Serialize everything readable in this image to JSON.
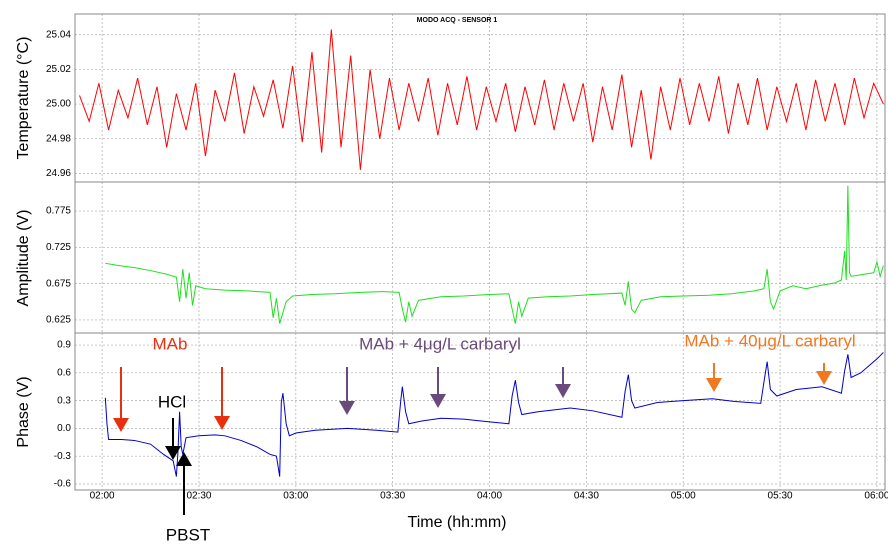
{
  "chart_data": [
    {
      "type": "line",
      "title": "MODO ACQ - SENSOR 1",
      "ylabel": "Temperature (°C)",
      "color": "#ff0000",
      "grid": true,
      "xlim": [
        111.6,
        362.5
      ],
      "ylim": [
        24.955,
        25.052
      ],
      "yticks": [
        24.96,
        24.98,
        {
          "value": 25,
          "label": "25.00"
        },
        25.02,
        25.04
      ],
      "x": [
        113,
        116,
        119,
        122,
        125,
        128,
        131,
        134,
        137,
        140,
        143,
        146,
        149,
        152,
        155,
        158,
        161,
        164,
        167,
        170,
        173,
        176,
        179,
        182,
        185,
        188,
        191,
        194,
        197,
        200,
        203,
        206,
        209,
        212,
        215,
        218,
        221,
        224,
        227,
        230,
        233,
        236,
        239,
        242,
        245,
        248,
        251,
        254,
        257,
        260,
        263,
        266,
        269,
        272,
        275,
        278,
        281,
        284,
        287,
        290,
        293,
        296,
        299,
        302,
        305,
        308,
        311,
        314,
        317,
        320,
        323,
        326,
        329,
        332,
        335,
        338,
        341,
        344,
        347,
        350,
        353,
        356,
        359,
        362
      ],
      "values": [
        25.005,
        24.99,
        25.012,
        24.985,
        25.008,
        24.992,
        25.015,
        24.988,
        25.01,
        24.975,
        25.006,
        24.985,
        25.012,
        24.97,
        25.008,
        24.99,
        25.018,
        24.983,
        25.01,
        24.993,
        25.014,
        24.986,
        25.022,
        24.978,
        25.03,
        24.972,
        25.043,
        24.975,
        25.028,
        24.962,
        25.02,
        24.98,
        25.015,
        24.985,
        25.012,
        24.99,
        25.015,
        24.982,
        25.012,
        24.988,
        25.016,
        24.985,
        25.01,
        24.99,
        25.012,
        24.984,
        25.01,
        24.988,
        25.014,
        24.985,
        25.012,
        24.99,
        25.012,
        24.978,
        25.01,
        24.985,
        25.017,
        24.975,
        25.008,
        24.968,
        25.01,
        24.985,
        25.015,
        24.988,
        25.012,
        24.99,
        25.016,
        24.983,
        25.012,
        24.988,
        25.015,
        24.985,
        25.01,
        24.99,
        25.012,
        24.985,
        25.014,
        24.99,
        25.012,
        24.988,
        25.015,
        24.992,
        25.012,
        25.0
      ]
    },
    {
      "type": "line",
      "ylabel": "Amplitude (V)",
      "color": "#1ee01e",
      "grid": true,
      "xlim": [
        111.6,
        362.5
      ],
      "ylim": [
        0.607,
        0.815
      ],
      "yticks": [
        0.625,
        0.675,
        0.725,
        0.775
      ],
      "x": [
        121,
        125,
        130,
        135,
        140,
        143,
        144,
        145,
        146,
        147,
        148,
        149,
        152,
        158,
        165,
        172,
        173,
        174,
        175,
        177,
        179,
        185,
        192,
        200,
        207,
        212,
        213,
        214,
        215,
        216,
        218,
        225,
        232,
        240,
        246,
        247,
        248,
        249,
        250,
        252,
        258,
        265,
        272,
        281,
        282,
        283,
        284,
        285,
        287,
        293,
        300,
        308,
        315,
        322,
        325,
        326,
        327,
        328,
        330,
        334,
        338,
        343,
        347,
        349,
        350,
        350.5,
        351,
        351.5,
        352,
        356,
        359,
        360,
        361,
        362
      ],
      "values": [
        0.703,
        0.7,
        0.697,
        0.693,
        0.688,
        0.684,
        0.65,
        0.695,
        0.655,
        0.69,
        0.645,
        0.672,
        0.668,
        0.666,
        0.665,
        0.663,
        0.628,
        0.655,
        0.62,
        0.65,
        0.658,
        0.66,
        0.661,
        0.663,
        0.664,
        0.663,
        0.64,
        0.622,
        0.65,
        0.63,
        0.652,
        0.657,
        0.658,
        0.66,
        0.661,
        0.64,
        0.62,
        0.65,
        0.63,
        0.655,
        0.657,
        0.658,
        0.66,
        0.662,
        0.645,
        0.678,
        0.64,
        0.635,
        0.652,
        0.657,
        0.658,
        0.659,
        0.661,
        0.665,
        0.668,
        0.695,
        0.65,
        0.64,
        0.665,
        0.672,
        0.668,
        0.673,
        0.676,
        0.68,
        0.72,
        0.68,
        0.81,
        0.69,
        0.685,
        0.688,
        0.69,
        0.705,
        0.685,
        0.7
      ]
    },
    {
      "type": "line",
      "ylabel": "Phase (V)",
      "xlabel": "Time (hh:mm)",
      "color": "#0000cc",
      "grid": true,
      "xlim": [
        111.6,
        362.5
      ],
      "ylim": [
        -0.665,
        1.03
      ],
      "yticks": [
        -0.6,
        -0.3,
        {
          "value": 0,
          "label": "0.0"
        },
        0.3,
        0.6,
        0.9
      ],
      "xticks": [
        {
          "value": 120,
          "label": "02:00"
        },
        {
          "value": 150,
          "label": "02:30"
        },
        {
          "value": 180,
          "label": "03:00"
        },
        {
          "value": 210,
          "label": "03:30"
        },
        {
          "value": 240,
          "label": "04:00"
        },
        {
          "value": 270,
          "label": "04:30"
        },
        {
          "value": 300,
          "label": "05:00"
        },
        {
          "value": 330,
          "label": "05:30"
        },
        {
          "value": 360,
          "label": "06:00"
        }
      ],
      "x": [
        121,
        121.5,
        122,
        126,
        130,
        135,
        139,
        142,
        143,
        143.5,
        144,
        144.5,
        145,
        146,
        150,
        155,
        158,
        163,
        168,
        172,
        174,
        175,
        175.5,
        176,
        177,
        178,
        180,
        186,
        196,
        205,
        211.6,
        212.5,
        213,
        214,
        215,
        219,
        225,
        232,
        240,
        246,
        247,
        248,
        249,
        250,
        255,
        260,
        265,
        272,
        281,
        282,
        283,
        284,
        285,
        292,
        300,
        309,
        316,
        324,
        325,
        326,
        327,
        329,
        335,
        343,
        349,
        350,
        351,
        352,
        355,
        360,
        362
      ],
      "values": [
        0.33,
        0.05,
        -0.12,
        -0.12,
        -0.13,
        -0.17,
        -0.28,
        -0.35,
        -0.52,
        -0.25,
        0.18,
        -0.2,
        -0.28,
        -0.1,
        -0.08,
        -0.07,
        -0.08,
        -0.13,
        -0.2,
        -0.28,
        -0.3,
        -0.52,
        0.28,
        0.38,
        0.05,
        -0.08,
        -0.05,
        -0.02,
        0.0,
        -0.02,
        -0.04,
        0.3,
        0.45,
        0.18,
        0.05,
        0.08,
        0.11,
        0.1,
        0.07,
        0.05,
        0.35,
        0.52,
        0.28,
        0.15,
        0.18,
        0.2,
        0.22,
        0.19,
        0.12,
        0.4,
        0.58,
        0.3,
        0.22,
        0.28,
        0.3,
        0.32,
        0.29,
        0.27,
        0.5,
        0.72,
        0.42,
        0.35,
        0.42,
        0.45,
        0.38,
        0.62,
        0.8,
        0.55,
        0.6,
        0.75,
        0.82
      ],
      "annotations": [
        {
          "text": "MAb",
          "color": "#e83010"
        },
        {
          "text": "MAb + 4μg/L carbaryl",
          "color": "#6a4a7a"
        },
        {
          "text": "MAb + 40μg/L  carbaryl",
          "color": "#f07820"
        },
        {
          "text": "HCl",
          "color": "#000000"
        },
        {
          "text": "PBST",
          "color": "#000000"
        }
      ]
    }
  ]
}
